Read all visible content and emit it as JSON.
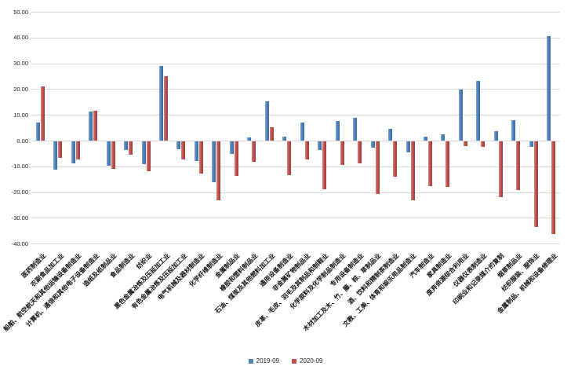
{
  "chart_data": {
    "type": "bar",
    "title": "",
    "xlabel": "",
    "ylabel": "",
    "ylim": [
      -40,
      50
    ],
    "ytick_interval": 10,
    "ytick_labels": [
      "50.00",
      "40.00",
      "30.00",
      "20.00",
      "10.00",
      "0.00",
      "-10.00",
      "-20.00",
      "-30.00",
      "-40.00"
    ],
    "grid": true,
    "legend_position": "bottom",
    "categories": [
      "医药制造业",
      "农副食品加工业",
      "船舶、航空航天和其他运输设备制造业",
      "计算机、通信和其他电子设备制造业",
      "造纸及纸制品业",
      "食品制造业",
      "纺织业",
      "黑色金属冶炼及压延加工业",
      "有色金属冶炼及压延加工业",
      "电气机械及器材制造业",
      "化学纤维制造业",
      "金属制品业",
      "橡胶和塑料制品业",
      "石油、煤炭及其他燃料加工业",
      "通用设备制造业",
      "非金属矿物制品业",
      "皮革、毛皮、羽毛及其制品和制鞋业",
      "化学原料及化学制品制造业",
      "专用设备制造业",
      "木材加工及木、竹、藤、棕、草制品业",
      "酒、饮料和精制茶制造业",
      "文教、工美、体育和娱乐用品制造业",
      "汽车制造业",
      "家具制造业",
      "废弃资源综合利用业",
      "仪器仪表制造业",
      "印刷业和记录媒介的复制",
      "烟草制品业",
      "纺织服装、服饰业",
      "金属制品、机械和设备修理业"
    ],
    "series": [
      {
        "name": "2019-09",
        "color": "#4F81BD",
        "values": [
          7.0,
          -11.0,
          -8.6,
          11.2,
          -9.3,
          -3.5,
          -8.8,
          29.0,
          -3.2,
          -7.7,
          -16.0,
          -5.0,
          1.3,
          15.1,
          1.5,
          7.0,
          -3.3,
          7.7,
          8.9,
          -2.3,
          4.5,
          -4.4,
          1.5,
          2.4,
          19.7,
          23.1,
          3.8,
          7.8,
          -2.0,
          40.5
        ]
      },
      {
        "name": "2020-09",
        "color": "#C0504D",
        "values": [
          21.0,
          -6.5,
          -7.1,
          11.7,
          -10.8,
          -5.3,
          -11.5,
          25.0,
          -7.0,
          -12.6,
          -22.8,
          -13.5,
          -8.0,
          5.3,
          -13.0,
          -7.0,
          -18.5,
          -9.2,
          -8.5,
          -20.3,
          -13.8,
          -22.9,
          -17.5,
          -17.6,
          -1.7,
          -2.2,
          -21.7,
          -18.8,
          -33.3,
          -36.0
        ]
      }
    ],
    "gridline_color": "#D9D9D9"
  }
}
